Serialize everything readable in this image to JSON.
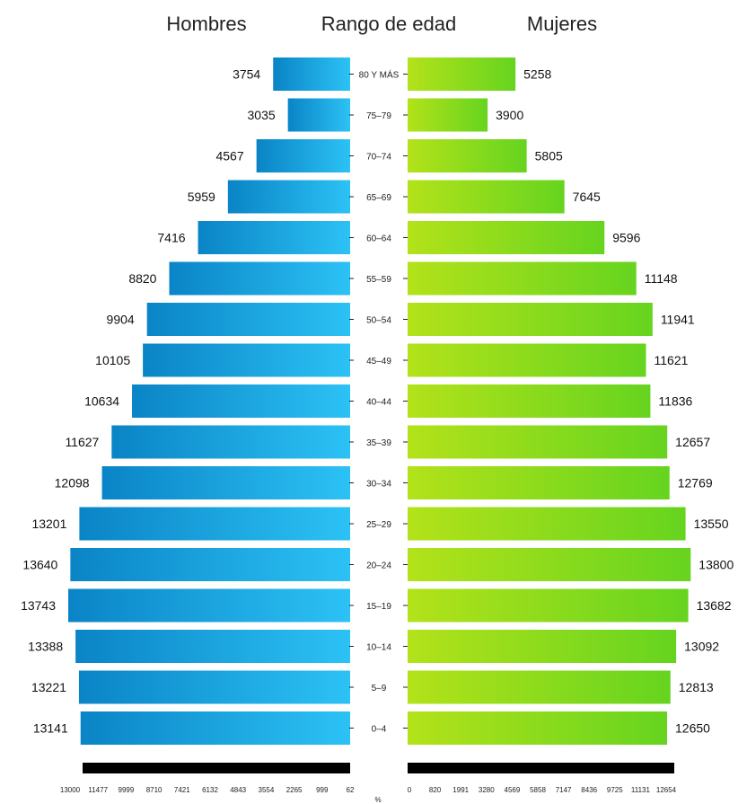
{
  "chart_data": {
    "type": "bar",
    "orientation": "population-pyramid",
    "headers": {
      "left": "Hombres",
      "center": "Rango de edad",
      "right": "Mujeres"
    },
    "categories": [
      "80 Y MÁS",
      "75–79",
      "70–74",
      "65–69",
      "60–64",
      "55–59",
      "50–54",
      "45–49",
      "40–44",
      "35–39",
      "30–34",
      "25–29",
      "20–24",
      "15–19",
      "10–14",
      "5–9",
      "0–4"
    ],
    "series": [
      {
        "name": "Hombres",
        "values": [
          3754,
          3035,
          4567,
          5959,
          7416,
          8820,
          9904,
          10105,
          10634,
          11627,
          12098,
          13201,
          13640,
          13743,
          13388,
          13221,
          13141
        ]
      },
      {
        "name": "Mujeres",
        "values": [
          5258,
          3900,
          5805,
          7645,
          9596,
          11148,
          11941,
          11621,
          11836,
          12657,
          12769,
          13550,
          13800,
          13682,
          13092,
          12813,
          12650
        ]
      }
    ],
    "xlim": [
      0,
      14000
    ],
    "axis": {
      "left_ticks": [
        "13000",
        "11477",
        "9999",
        "8710",
        "7421",
        "6132",
        "4843",
        "3554",
        "2265",
        "999",
        "62"
      ],
      "right_ticks": [
        "0",
        "820",
        "1991",
        "3280",
        "4569",
        "5858",
        "7147",
        "8436",
        "9725",
        "11131",
        "12654"
      ],
      "unit": "%"
    },
    "colors": {
      "men_start": "#0a84c6",
      "men_end": "#2cc2f5",
      "women_start": "#b3e21a",
      "women_end": "#66d41f",
      "axis_bar": "#000000"
    },
    "legend": "none",
    "grid": false
  }
}
